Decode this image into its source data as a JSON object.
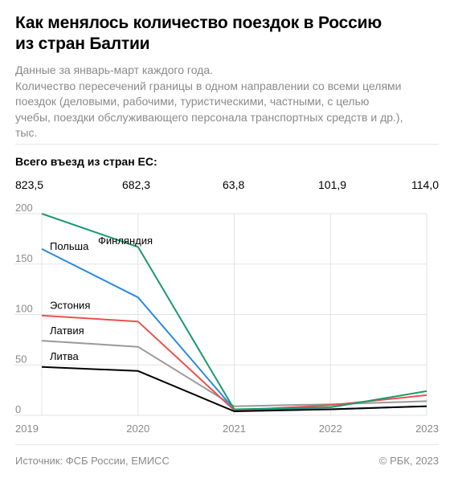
{
  "header": {
    "title_line1": "Как менялось количество поездок в Россию",
    "title_line2": "из стран Балтии",
    "subtitle_lines": [
      "Данные за январь-март каждого года.",
      "Количество пересечений границы в одном направлении со всеми целями",
      "поездок (деловыми, рабочими, туристическими, частными, с целью",
      "учебы, поездки обслуживающего персонала транспортных средств и др.),",
      "тыс."
    ]
  },
  "totals": {
    "title": "Всего въезд из стран ЕС:",
    "values": [
      "823,5",
      "682,3",
      "63,8",
      "101,9",
      "114,0"
    ]
  },
  "chart_data": {
    "type": "line",
    "x": [
      "2019",
      "2020",
      "2021",
      "2022",
      "2023"
    ],
    "ylim": [
      0,
      200
    ],
    "yticks": [
      "0",
      "50",
      "100",
      "150",
      "200"
    ],
    "grid": true,
    "series": [
      {
        "name": "Финляндия",
        "color": "#1a9a6c",
        "values": [
          200,
          167,
          6,
          8,
          24
        ]
      },
      {
        "name": "Польша",
        "color": "#2b88e6",
        "values": [
          165,
          117,
          6,
          6,
          9
        ]
      },
      {
        "name": "Эстония",
        "color": "#ef4f4f",
        "values": [
          99,
          93,
          5,
          10,
          20
        ]
      },
      {
        "name": "Латвия",
        "color": "#999999",
        "values": [
          74,
          68,
          9,
          11,
          14
        ]
      },
      {
        "name": "Литва",
        "color": "#000000",
        "values": [
          48,
          44,
          4,
          6,
          9
        ]
      }
    ]
  },
  "footer": {
    "source": "Источник: ФСБ России, ЕМИСС",
    "copyright": "© РБК, 2023"
  }
}
